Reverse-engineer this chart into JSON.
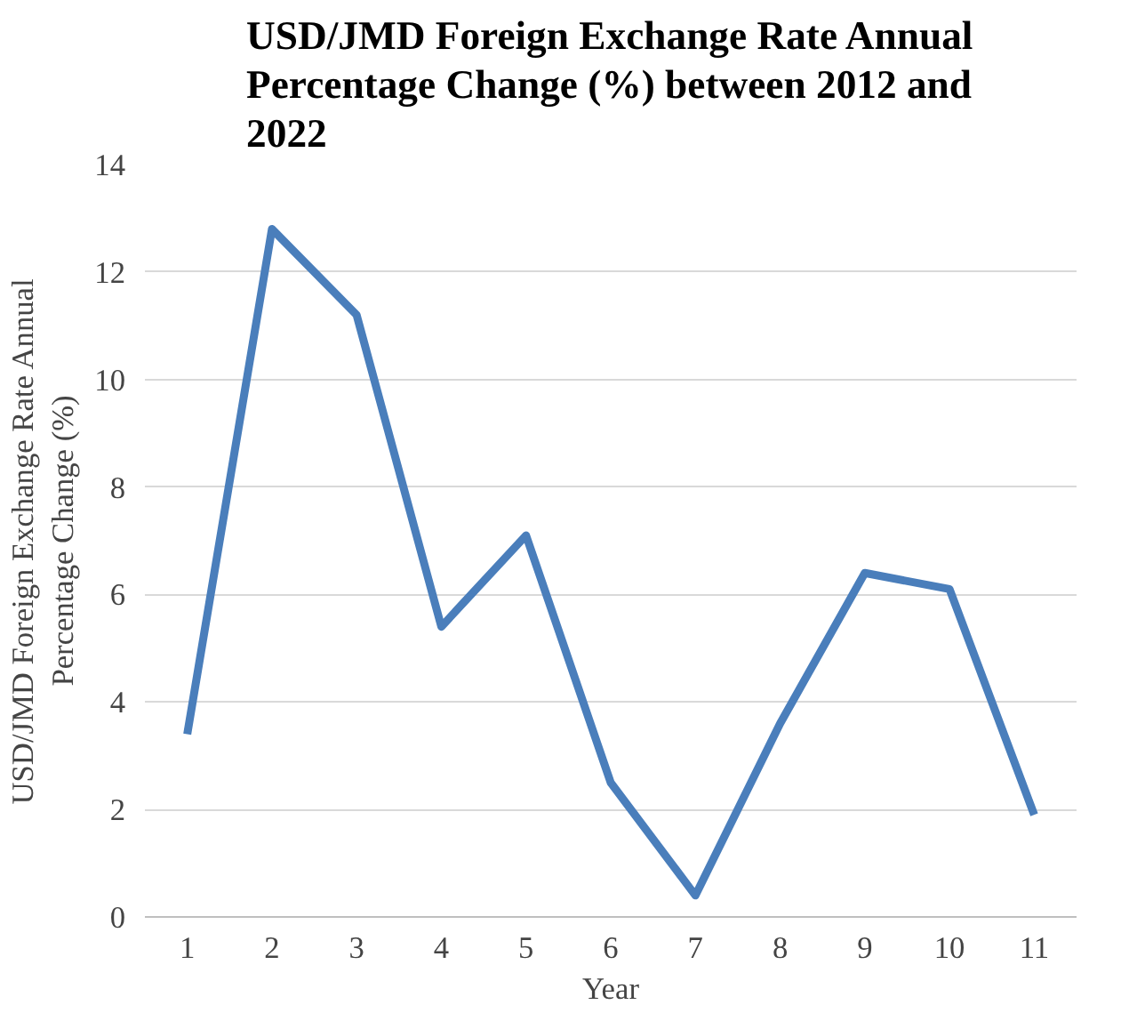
{
  "chart_data": {
    "type": "line",
    "title": "USD/JMD Foreign Exchange Rate Annual Percentage Change (%) between 2012 and 2022",
    "xlabel": "Year",
    "ylabel": "USD/JMD Foreign Exchange Rate Annual Percentage Change (%)",
    "categories": [
      "1",
      "2",
      "3",
      "4",
      "5",
      "6",
      "7",
      "8",
      "9",
      "10",
      "11"
    ],
    "series": [
      {
        "color": "#4a7ebb",
        "values": [
          3.4,
          12.8,
          11.2,
          5.4,
          7.1,
          2.5,
          0.4,
          3.6,
          6.4,
          6.1,
          1.9
        ]
      }
    ],
    "ylim": [
      0,
      14
    ],
    "yticks": [
      0,
      2,
      4,
      6,
      8,
      10,
      12,
      14
    ],
    "grid": "y",
    "marker": "none",
    "line_style": "solid"
  }
}
